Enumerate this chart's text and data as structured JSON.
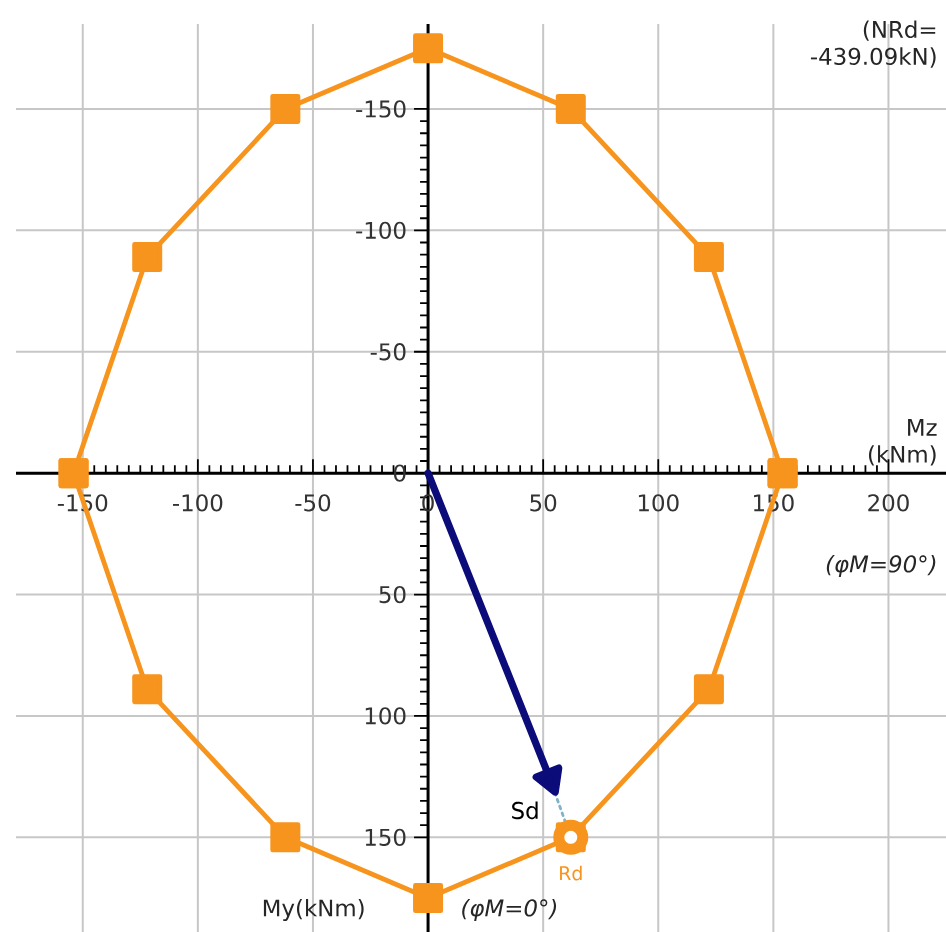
{
  "chart_data": {
    "type": "line",
    "xlabel": "Mz (kNm)",
    "ylabel": "My(kNm)",
    "annotations": [
      "(NRd= -439.09kN)",
      "(φM=90°)",
      "(φM=0°)"
    ],
    "series": [
      {
        "x": [
          -154,
          -122,
          -62,
          0,
          62,
          122,
          154
        ],
        "values": [
          0,
          -89,
          -150,
          -175,
          -150,
          -89,
          0
        ],
        "color": "#f7941d",
        "marker": "square"
      },
      {
        "x": [
          -154,
          -122,
          -62,
          0,
          62,
          122,
          154
        ],
        "values": [
          0,
          89,
          150,
          175,
          150,
          89,
          0
        ],
        "color": "#f7941d",
        "marker": "square"
      },
      {
        "name": "Sd",
        "x": [
          0,
          53
        ],
        "values": [
          0,
          126
        ],
        "color": "#0b0b7a",
        "marker": "triangle"
      },
      {
        "x": [
          53,
          62
        ],
        "values": [
          126,
          150
        ],
        "color": "#7fb3c8",
        "line_style": "dotted"
      },
      {
        "name": "Rd",
        "type": "scatter",
        "x": [
          62
        ],
        "values": [
          150
        ],
        "color": "#f7941d",
        "marker": "circle"
      }
    ],
    "xlim": [
      -179,
      225
    ],
    "ylim": [
      189,
      -185
    ],
    "xticks": [
      -150,
      -100,
      -50,
      0,
      50,
      100,
      150,
      200
    ],
    "yticks": [
      -150,
      -100,
      -50,
      0,
      50,
      100,
      150
    ],
    "grid": true
  }
}
